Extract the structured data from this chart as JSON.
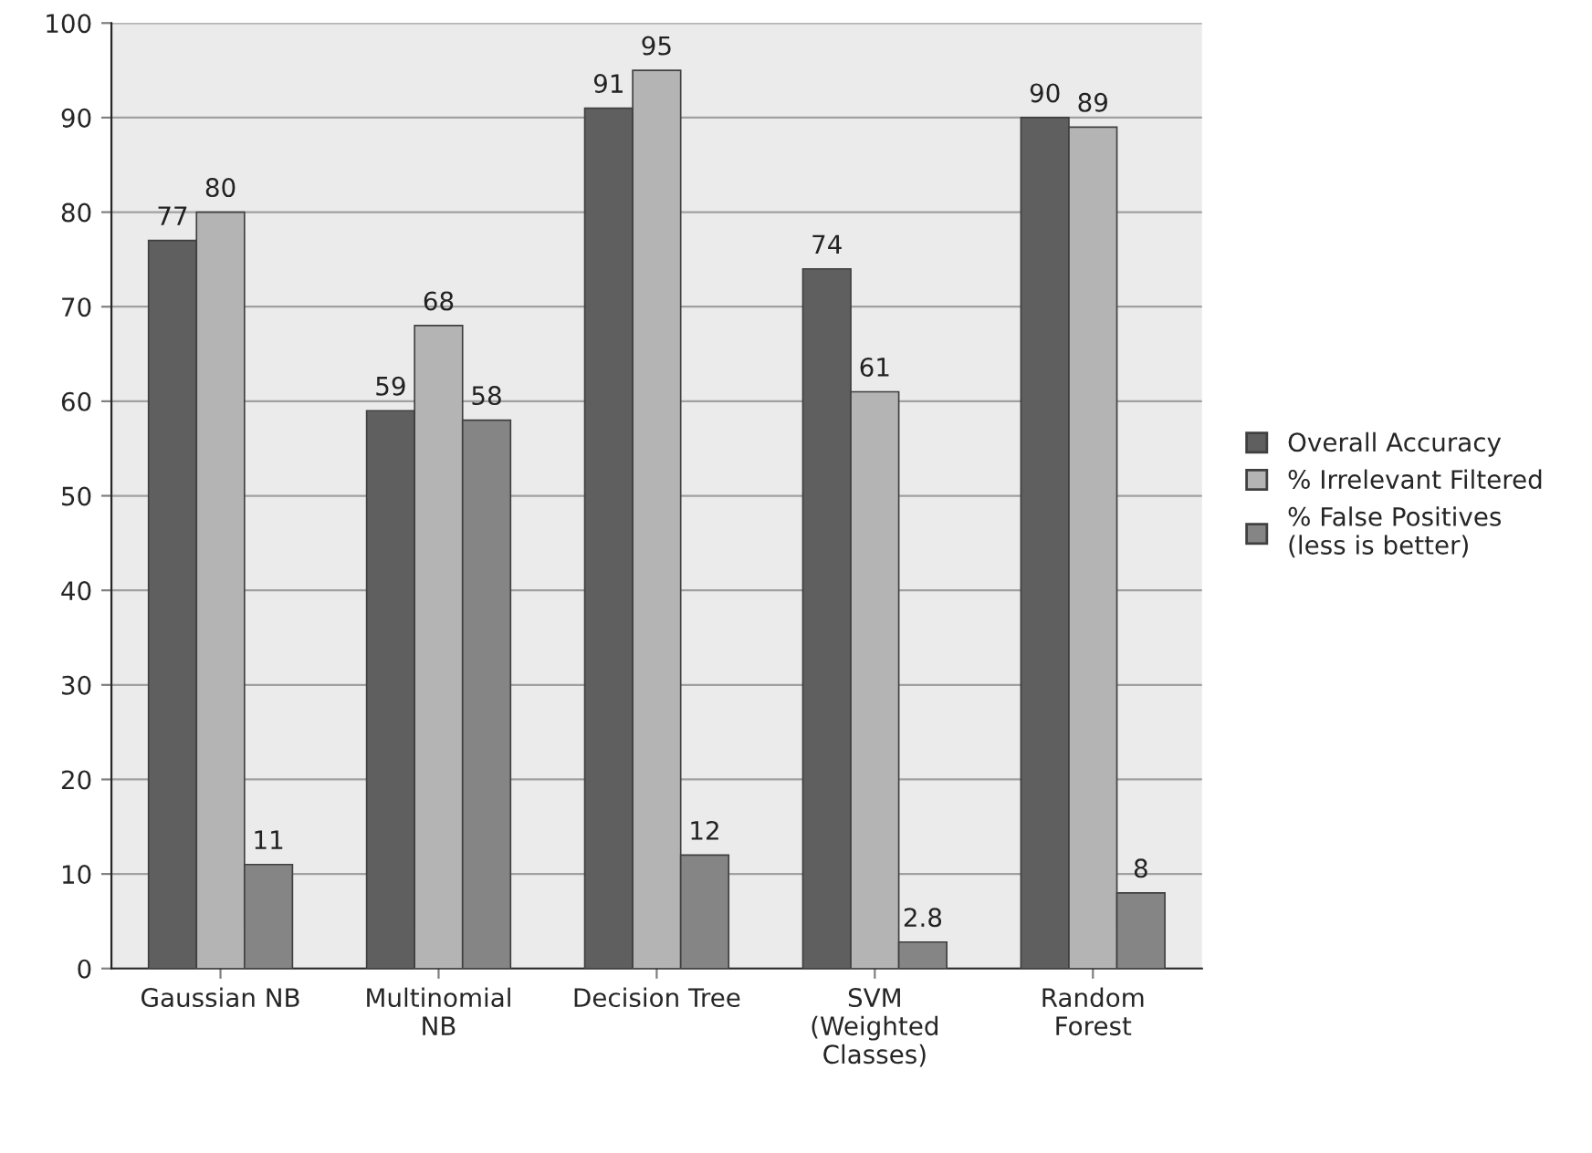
{
  "chart_data": {
    "type": "bar",
    "categories": [
      "Gaussian NB",
      "Multinomial\nNB",
      "Decision Tree",
      "SVM\n(Weighted\nClasses)",
      "Random\nForest"
    ],
    "series": [
      {
        "name": "Overall Accuracy",
        "color": "#5f5f5f",
        "values": [
          77,
          59,
          91,
          74,
          90
        ]
      },
      {
        "name": "% Irrelevant Filtered",
        "color": "#b4b4b4",
        "values": [
          80,
          68,
          95,
          61,
          89
        ]
      },
      {
        "name": "% False Positives\n(less is better)",
        "color": "#858585",
        "values": [
          11,
          58,
          12,
          2.8,
          8
        ]
      }
    ],
    "ylim": [
      0,
      100
    ],
    "yticks": [
      0,
      10,
      20,
      30,
      40,
      50,
      60,
      70,
      80,
      90,
      100
    ],
    "grid": "y",
    "legend": "right",
    "data_labels": true
  }
}
